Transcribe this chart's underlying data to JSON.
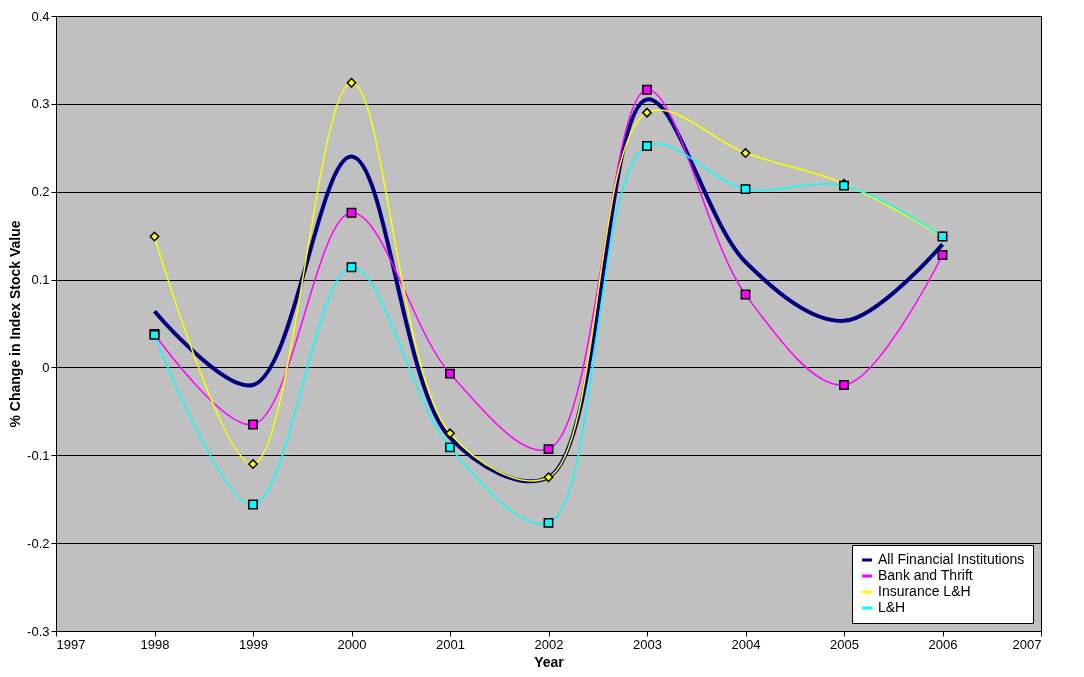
{
  "chart_data": {
    "type": "line",
    "xlabel": "Year",
    "ylabel": "% Change in Index Stock Value",
    "x": [
      1998,
      1999,
      2000,
      2001,
      2002,
      2003,
      2004,
      2005,
      2006
    ],
    "series": [
      {
        "name": "All Financial Institutions",
        "color": "#000080",
        "marker": "none",
        "values": [
          0.064,
          -0.02,
          0.24,
          -0.08,
          -0.125,
          0.305,
          0.12,
          0.053,
          0.14
        ]
      },
      {
        "name": "Bank and Thrift",
        "color": "#ff00ff",
        "marker": "square",
        "values": [
          0.038,
          -0.065,
          0.176,
          -0.007,
          -0.093,
          0.316,
          0.083,
          -0.02,
          0.128
        ]
      },
      {
        "name": "Insurance L&H",
        "color": "#ffff00",
        "marker": "diamond",
        "values": [
          0.149,
          -0.11,
          0.324,
          -0.075,
          -0.125,
          0.29,
          0.244,
          0.209,
          0.149
        ]
      },
      {
        "name": "L&H",
        "color": "#00ffff",
        "marker": "square",
        "values": [
          0.037,
          -0.156,
          0.114,
          -0.091,
          -0.177,
          0.252,
          0.203,
          0.207,
          0.149
        ]
      }
    ],
    "xlim": [
      1997,
      2007
    ],
    "xticks": [
      1997,
      1998,
      1999,
      2000,
      2001,
      2002,
      2003,
      2004,
      2005,
      2006,
      2007
    ],
    "ylim": [
      -0.3,
      0.4
    ],
    "yticks": [
      -0.3,
      -0.2,
      -0.1,
      0,
      0.1,
      0.2,
      0.3,
      0.4
    ],
    "grid": "y",
    "legend": "bottom right"
  }
}
